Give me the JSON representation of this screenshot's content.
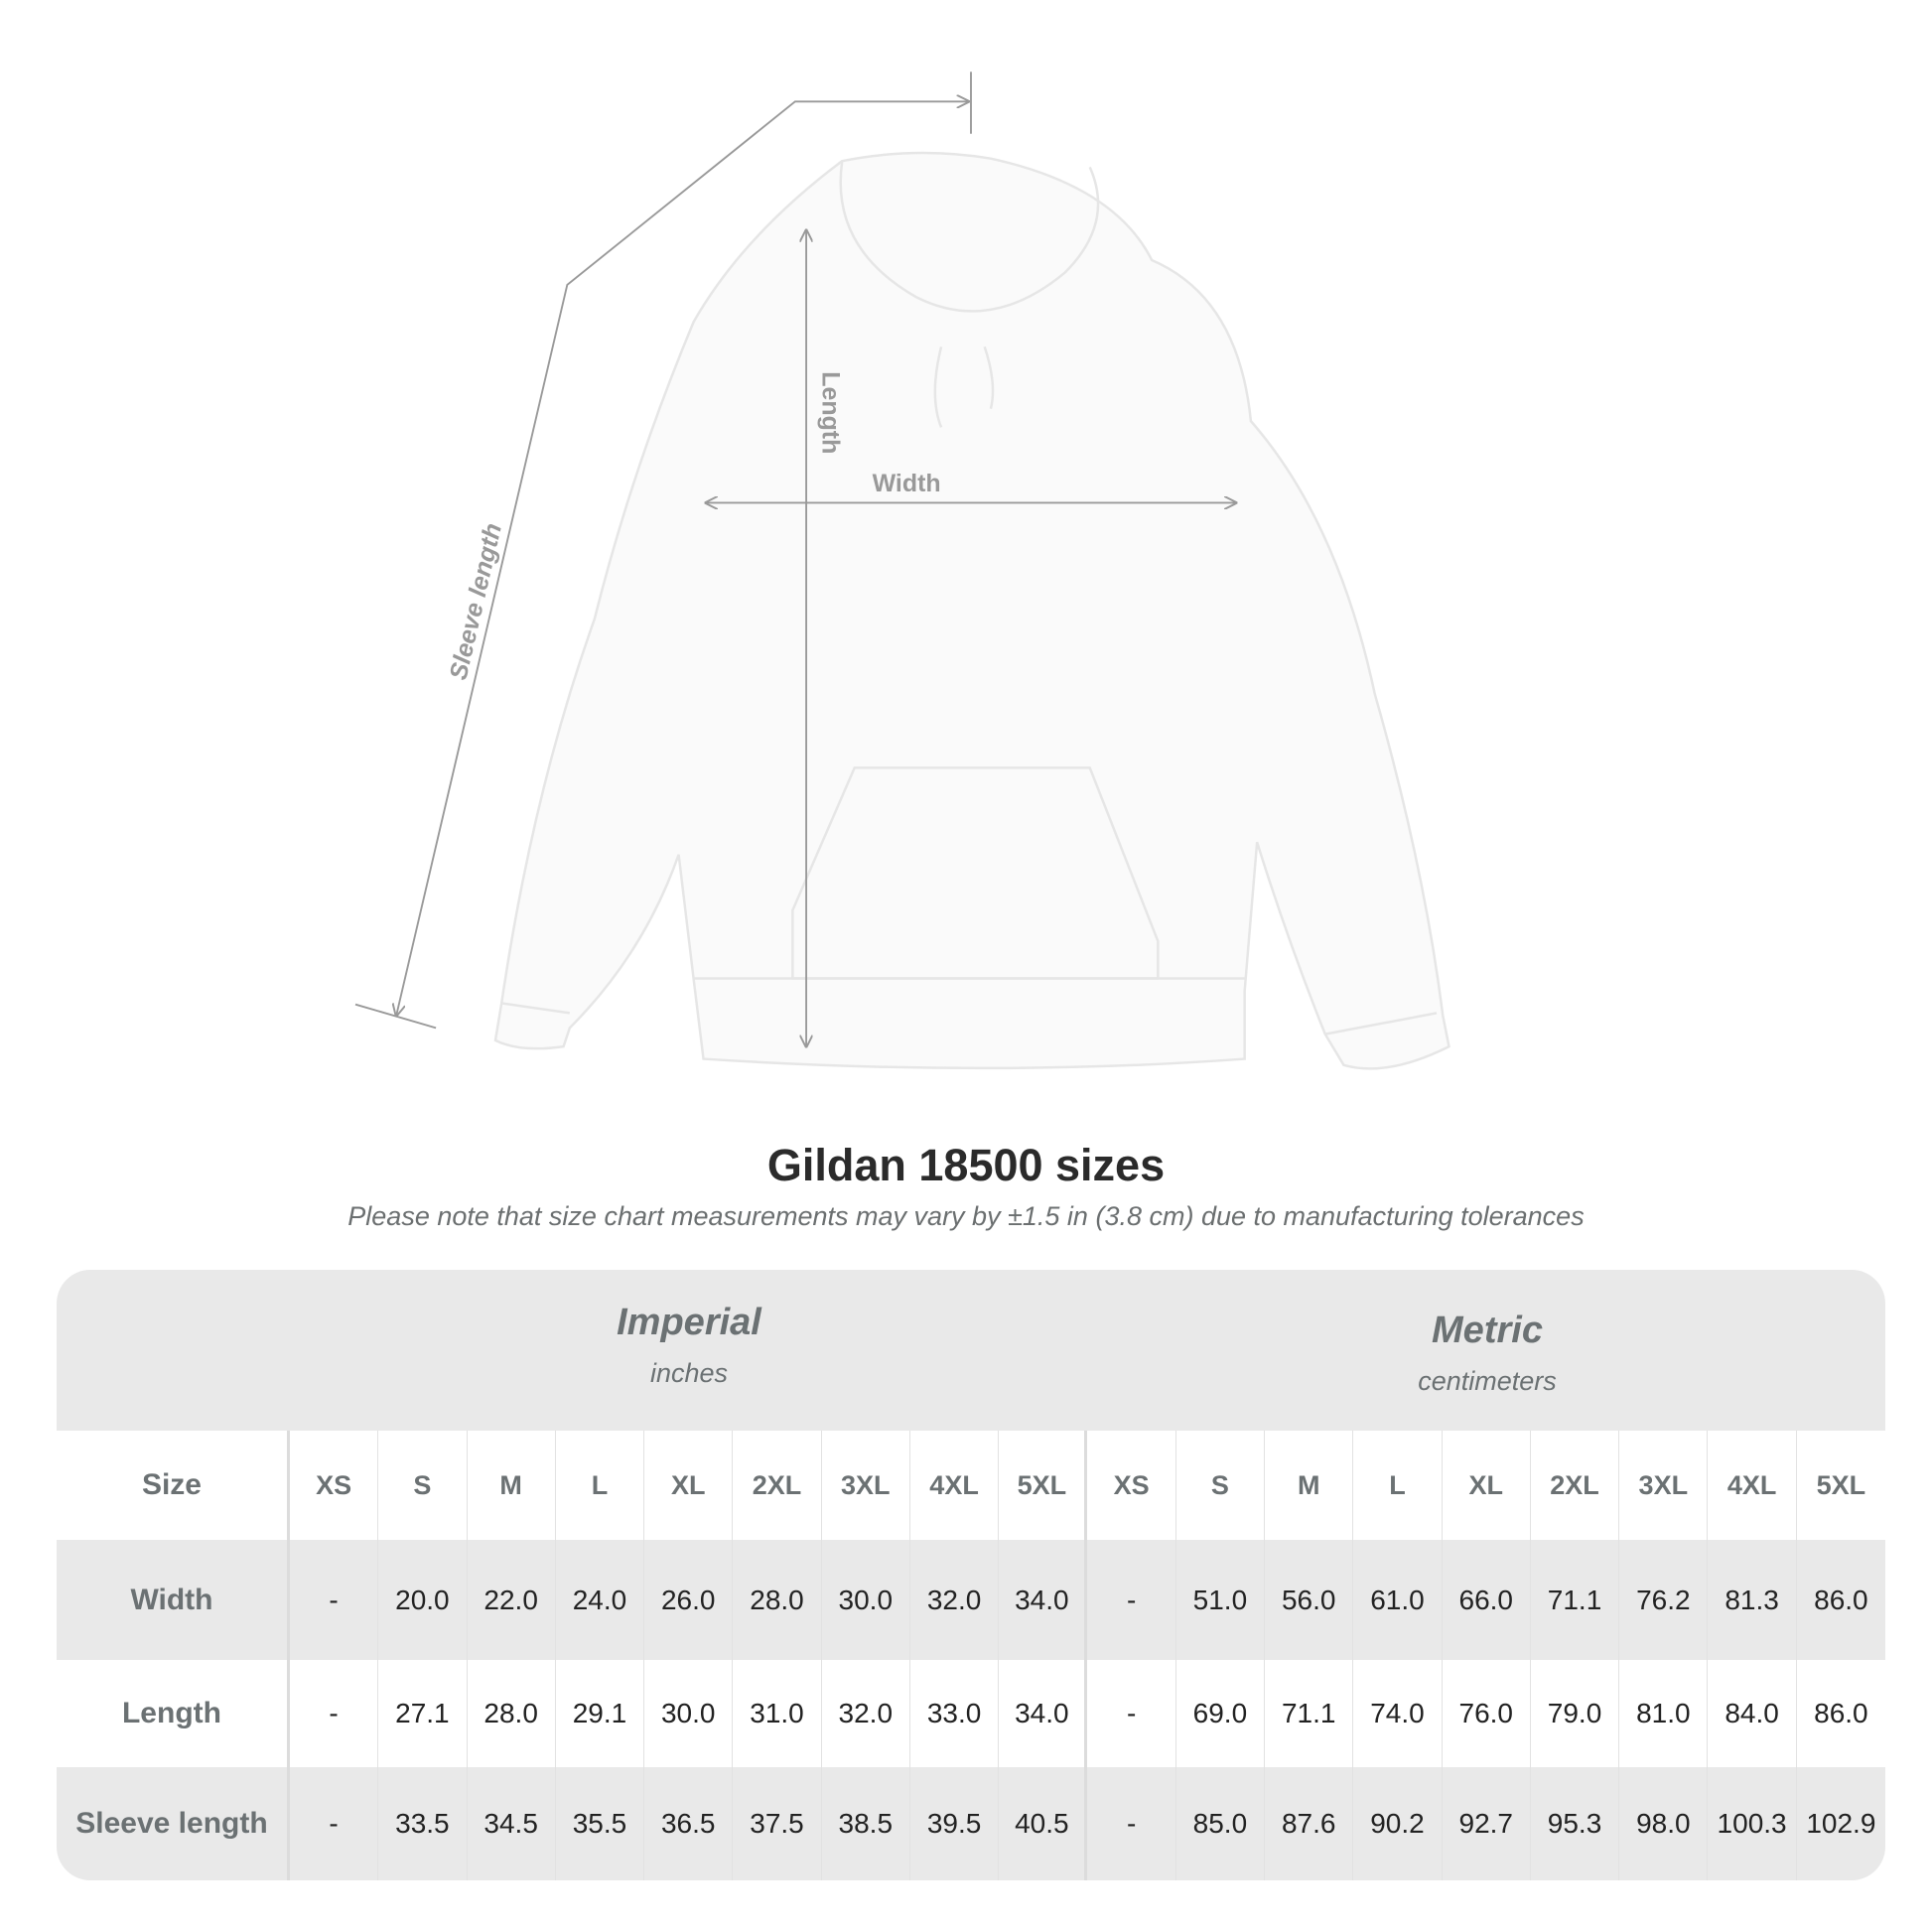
{
  "diagram": {
    "labels": {
      "width": "Width",
      "length": "Length",
      "sleeve": "Sleeve length"
    }
  },
  "title": "Gildan 18500 sizes",
  "subtitle": "Please note that size chart measurements may vary by ±1.5 in (3.8 cm) due to manufacturing tolerances",
  "table": {
    "imperial": {
      "name": "Imperial",
      "unit": "inches"
    },
    "metric": {
      "name": "Metric",
      "unit": "centimeters"
    },
    "size_label": "Size",
    "sizes": [
      "XS",
      "S",
      "M",
      "L",
      "XL",
      "2XL",
      "3XL",
      "4XL",
      "5XL"
    ],
    "rows": [
      {
        "label": "Width",
        "imperial": [
          "-",
          "20.0",
          "22.0",
          "24.0",
          "26.0",
          "28.0",
          "30.0",
          "32.0",
          "34.0"
        ],
        "metric": [
          "-",
          "51.0",
          "56.0",
          "61.0",
          "66.0",
          "71.1",
          "76.2",
          "81.3",
          "86.0"
        ]
      },
      {
        "label": "Length",
        "imperial": [
          "-",
          "27.1",
          "28.0",
          "29.1",
          "30.0",
          "31.0",
          "32.0",
          "33.0",
          "34.0"
        ],
        "metric": [
          "-",
          "69.0",
          "71.1",
          "74.0",
          "76.0",
          "79.0",
          "81.0",
          "84.0",
          "86.0"
        ]
      },
      {
        "label": "Sleeve length",
        "imperial": [
          "-",
          "33.5",
          "34.5",
          "35.5",
          "36.5",
          "37.5",
          "38.5",
          "39.5",
          "40.5"
        ],
        "metric": [
          "-",
          "85.0",
          "87.6",
          "90.2",
          "92.7",
          "95.3",
          "98.0",
          "100.3",
          "102.9"
        ]
      }
    ]
  }
}
